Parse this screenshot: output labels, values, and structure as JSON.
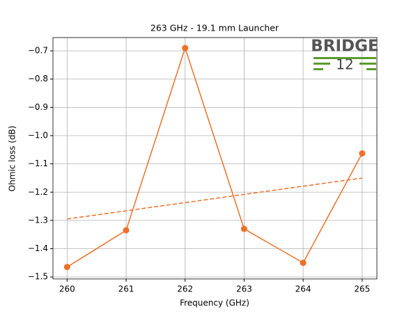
{
  "chart_data": {
    "type": "line",
    "title": "263 GHz - 19.1 mm Launcher",
    "xlabel": "Frequency (GHz)",
    "ylabel": "Ohmic loss (dB)",
    "logo": {
      "name": "BRIDGE",
      "number": "12"
    },
    "series": [
      {
        "x": [
          260,
          261,
          262,
          263,
          264,
          265
        ],
        "values": [
          -1.465,
          -1.335,
          -0.69,
          -1.33,
          -1.45,
          -1.063
        ],
        "color": "#ee7028",
        "line_style": "solid",
        "markers": true
      },
      {
        "x": [
          260,
          265
        ],
        "values": [
          -1.295,
          -1.15
        ],
        "color": "#ee7028",
        "line_style": "dashed",
        "markers": false
      }
    ],
    "xlim": [
      259.76,
      265.25
    ],
    "ylim": [
      -1.507,
      -0.653
    ],
    "xticks": [
      260,
      261,
      262,
      263,
      264,
      265
    ],
    "yticks": [
      {
        "value": -1.5,
        "label": "−1.5"
      },
      {
        "value": -1.4,
        "label": "−1.4"
      },
      {
        "value": -1.3,
        "label": "−1.3"
      },
      {
        "value": -1.2,
        "label": "−1.2"
      },
      {
        "value": -1.1,
        "label": "−1.1"
      },
      {
        "value": -1.0,
        "label": "−1.0"
      },
      {
        "value": -0.9,
        "label": "−0.9"
      },
      {
        "value": -0.8,
        "label": "−0.8"
      },
      {
        "value": -0.7,
        "label": "−0.7"
      }
    ],
    "grid": true
  }
}
